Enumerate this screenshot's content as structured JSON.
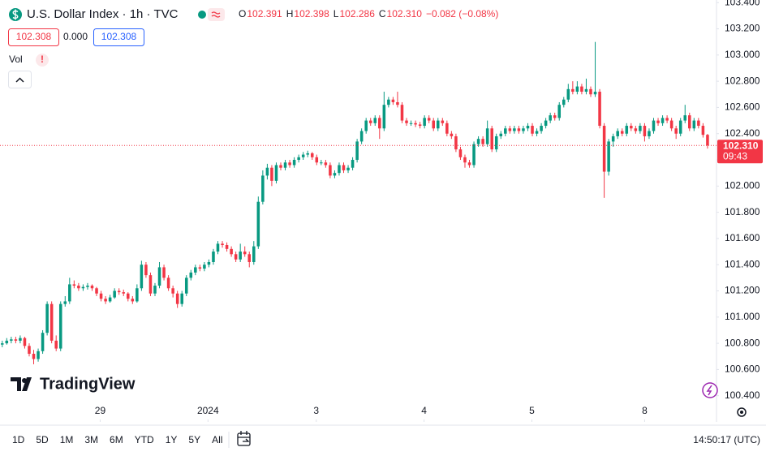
{
  "header": {
    "title": "U.S. Dollar Index · 1h · TVC",
    "ohlc": [
      {
        "key": "O",
        "value": "102.391"
      },
      {
        "key": "H",
        "value": "102.398"
      },
      {
        "key": "L",
        "value": "102.286"
      },
      {
        "key": "C",
        "value": "102.310"
      }
    ],
    "change": "−0.082 (−0.08%)",
    "bid": "102.308",
    "spread": "0.000",
    "ask": "102.308",
    "volume_label": "Vol",
    "volume_alert": "!"
  },
  "chart_data": {
    "type": "candlestick",
    "up_color": "#089981",
    "down_color": "#f23645",
    "grid": false,
    "xlim": [
      -0.5,
      159
    ],
    "ylim": [
      100.2,
      103.42
    ],
    "xticks": [
      {
        "value": 21.8,
        "label": "29"
      },
      {
        "value": 45.8,
        "label": "2024"
      },
      {
        "value": 69.9,
        "label": "3"
      },
      {
        "value": 93.9,
        "label": "4"
      },
      {
        "value": 117.9,
        "label": "5"
      },
      {
        "value": 143,
        "label": "8"
      }
    ],
    "yticks": [
      {
        "value": 100.4,
        "label": "100.400"
      },
      {
        "value": 100.6,
        "label": "100.600"
      },
      {
        "value": 100.8,
        "label": "100.800"
      },
      {
        "value": 101,
        "label": "101.000"
      },
      {
        "value": 101.2,
        "label": "101.200"
      },
      {
        "value": 101.4,
        "label": "101.400"
      },
      {
        "value": 101.6,
        "label": "101.600"
      },
      {
        "value": 101.8,
        "label": "101.800"
      },
      {
        "value": 102,
        "label": "102.000"
      },
      {
        "value": 102.2,
        "label": "102.200"
      },
      {
        "value": 102.4,
        "label": "102.400"
      },
      {
        "value": 102.6,
        "label": "102.600"
      },
      {
        "value": 102.8,
        "label": "102.800"
      },
      {
        "value": 103,
        "label": "103.000"
      },
      {
        "value": 103.2,
        "label": "103.200"
      },
      {
        "value": 103.4,
        "label": "103.400"
      }
    ],
    "last_price_label": "102.310",
    "countdown": "09:43",
    "candles": [
      [
        100.79,
        100.82,
        100.77,
        100.8
      ],
      [
        100.8,
        100.84,
        100.79,
        100.82
      ],
      [
        100.82,
        100.85,
        100.8,
        100.83
      ],
      [
        100.83,
        100.85,
        100.8,
        100.82
      ],
      [
        100.82,
        100.86,
        100.8,
        100.84
      ],
      [
        100.84,
        100.85,
        100.76,
        100.78
      ],
      [
        100.78,
        100.8,
        100.7,
        100.72
      ],
      [
        100.72,
        100.75,
        100.64,
        100.68
      ],
      [
        100.68,
        100.76,
        100.66,
        100.74
      ],
      [
        100.74,
        100.9,
        100.72,
        100.88
      ],
      [
        100.88,
        101.12,
        100.86,
        101.1
      ],
      [
        101.1,
        101.12,
        100.8,
        100.82
      ],
      [
        100.82,
        100.86,
        100.74,
        100.76
      ],
      [
        100.76,
        101.12,
        100.74,
        101.1
      ],
      [
        101.1,
        101.16,
        101.08,
        101.12
      ],
      [
        101.12,
        101.3,
        101.1,
        101.25
      ],
      [
        101.25,
        101.28,
        101.22,
        101.24
      ],
      [
        101.24,
        101.26,
        101.2,
        101.22
      ],
      [
        101.22,
        101.25,
        101.2,
        101.23
      ],
      [
        101.23,
        101.26,
        101.21,
        101.24
      ],
      [
        101.24,
        101.25,
        101.2,
        101.22
      ],
      [
        101.22,
        101.23,
        101.16,
        101.18
      ],
      [
        101.18,
        101.2,
        101.12,
        101.14
      ],
      [
        101.14,
        101.16,
        101.1,
        101.12
      ],
      [
        101.12,
        101.17,
        101.11,
        101.15
      ],
      [
        101.15,
        101.22,
        101.14,
        101.2
      ],
      [
        101.2,
        101.22,
        101.17,
        101.19
      ],
      [
        101.19,
        101.21,
        101.16,
        101.18
      ],
      [
        101.18,
        101.19,
        101.12,
        101.14
      ],
      [
        101.14,
        101.16,
        101.1,
        101.12
      ],
      [
        101.12,
        101.25,
        101.11,
        101.22
      ],
      [
        101.22,
        101.43,
        101.2,
        101.4
      ],
      [
        101.4,
        101.42,
        101.3,
        101.32
      ],
      [
        101.32,
        101.34,
        101.16,
        101.18
      ],
      [
        101.18,
        101.26,
        101.16,
        101.24
      ],
      [
        101.24,
        101.42,
        101.22,
        101.38
      ],
      [
        101.38,
        101.4,
        101.28,
        101.3
      ],
      [
        101.3,
        101.32,
        101.2,
        101.22
      ],
      [
        101.22,
        101.24,
        101.15,
        101.18
      ],
      [
        101.18,
        101.2,
        101.07,
        101.1
      ],
      [
        101.1,
        101.2,
        101.08,
        101.18
      ],
      [
        101.18,
        101.32,
        101.16,
        101.3
      ],
      [
        101.3,
        101.36,
        101.28,
        101.34
      ],
      [
        101.34,
        101.4,
        101.32,
        101.38
      ],
      [
        101.38,
        101.4,
        101.35,
        101.37
      ],
      [
        101.37,
        101.42,
        101.35,
        101.4
      ],
      [
        101.4,
        101.44,
        101.38,
        101.42
      ],
      [
        101.42,
        101.52,
        101.4,
        101.5
      ],
      [
        101.5,
        101.58,
        101.48,
        101.56
      ],
      [
        101.56,
        101.58,
        101.53,
        101.55
      ],
      [
        101.55,
        101.57,
        101.5,
        101.52
      ],
      [
        101.52,
        101.54,
        101.46,
        101.48
      ],
      [
        101.48,
        101.5,
        101.42,
        101.44
      ],
      [
        101.44,
        101.56,
        101.42,
        101.5
      ],
      [
        101.5,
        101.54,
        101.46,
        101.48
      ],
      [
        101.48,
        101.5,
        101.38,
        101.42
      ],
      [
        101.42,
        101.58,
        101.4,
        101.54
      ],
      [
        101.54,
        101.92,
        101.52,
        101.88
      ],
      [
        101.88,
        102.12,
        101.86,
        102.08
      ],
      [
        102.08,
        102.17,
        102.05,
        102.14
      ],
      [
        102.14,
        102.16,
        102.0,
        102.04
      ],
      [
        102.04,
        102.18,
        102.02,
        102.16
      ],
      [
        102.16,
        102.18,
        102.12,
        102.14
      ],
      [
        102.14,
        102.2,
        102.12,
        102.18
      ],
      [
        102.18,
        102.2,
        102.14,
        102.16
      ],
      [
        102.16,
        102.22,
        102.14,
        102.2
      ],
      [
        102.2,
        102.24,
        102.18,
        102.22
      ],
      [
        102.22,
        102.26,
        102.2,
        102.24
      ],
      [
        102.24,
        102.27,
        102.22,
        102.25
      ],
      [
        102.25,
        102.26,
        102.2,
        102.22
      ],
      [
        102.22,
        102.24,
        102.16,
        102.18
      ],
      [
        102.18,
        102.2,
        102.16,
        102.18
      ],
      [
        102.18,
        102.2,
        102.14,
        102.16
      ],
      [
        102.16,
        102.18,
        102.06,
        102.08
      ],
      [
        102.08,
        102.12,
        102.06,
        102.1
      ],
      [
        102.1,
        102.18,
        102.08,
        102.16
      ],
      [
        102.16,
        102.18,
        102.1,
        102.12
      ],
      [
        102.12,
        102.16,
        102.1,
        102.14
      ],
      [
        102.14,
        102.22,
        102.12,
        102.2
      ],
      [
        102.2,
        102.36,
        102.18,
        102.34
      ],
      [
        102.34,
        102.44,
        102.32,
        102.42
      ],
      [
        102.42,
        102.52,
        102.4,
        102.5
      ],
      [
        102.5,
        102.52,
        102.46,
        102.48
      ],
      [
        102.48,
        102.54,
        102.46,
        102.52
      ],
      [
        102.52,
        102.54,
        102.36,
        102.44
      ],
      [
        102.44,
        102.72,
        102.42,
        102.62
      ],
      [
        102.62,
        102.68,
        102.6,
        102.66
      ],
      [
        102.66,
        102.68,
        102.62,
        102.64
      ],
      [
        102.64,
        102.72,
        102.6,
        102.62
      ],
      [
        102.62,
        102.64,
        102.48,
        102.5
      ],
      [
        102.5,
        102.52,
        102.46,
        102.48
      ],
      [
        102.48,
        102.5,
        102.46,
        102.48
      ],
      [
        102.48,
        102.5,
        102.45,
        102.47
      ],
      [
        102.47,
        102.49,
        102.44,
        102.46
      ],
      [
        102.46,
        102.54,
        102.44,
        102.52
      ],
      [
        102.52,
        102.54,
        102.48,
        102.5
      ],
      [
        102.5,
        102.52,
        102.42,
        102.44
      ],
      [
        102.44,
        102.52,
        102.42,
        102.5
      ],
      [
        102.5,
        102.52,
        102.46,
        102.48
      ],
      [
        102.48,
        102.5,
        102.38,
        102.4
      ],
      [
        102.4,
        102.42,
        102.36,
        102.38
      ],
      [
        102.38,
        102.4,
        102.26,
        102.28
      ],
      [
        102.28,
        102.3,
        102.2,
        102.22
      ],
      [
        102.22,
        102.24,
        102.14,
        102.18
      ],
      [
        102.18,
        102.2,
        102.14,
        102.16
      ],
      [
        102.16,
        102.34,
        102.14,
        102.32
      ],
      [
        102.32,
        102.38,
        102.3,
        102.36
      ],
      [
        102.36,
        102.38,
        102.3,
        102.32
      ],
      [
        102.32,
        102.5,
        102.3,
        102.44
      ],
      [
        102.44,
        102.46,
        102.26,
        102.28
      ],
      [
        102.28,
        102.4,
        102.26,
        102.38
      ],
      [
        102.38,
        102.42,
        102.36,
        102.4
      ],
      [
        102.4,
        102.46,
        102.38,
        102.44
      ],
      [
        102.44,
        102.46,
        102.4,
        102.42
      ],
      [
        102.42,
        102.46,
        102.4,
        102.44
      ],
      [
        102.44,
        102.46,
        102.4,
        102.42
      ],
      [
        102.42,
        102.46,
        102.4,
        102.44
      ],
      [
        102.44,
        102.48,
        102.42,
        102.46
      ],
      [
        102.46,
        102.48,
        102.38,
        102.4
      ],
      [
        102.4,
        102.44,
        102.38,
        102.42
      ],
      [
        102.42,
        102.48,
        102.4,
        102.46
      ],
      [
        102.46,
        102.52,
        102.44,
        102.5
      ],
      [
        102.5,
        102.56,
        102.48,
        102.54
      ],
      [
        102.54,
        102.56,
        102.5,
        102.52
      ],
      [
        102.52,
        102.64,
        102.5,
        102.62
      ],
      [
        102.62,
        102.68,
        102.6,
        102.66
      ],
      [
        102.66,
        102.78,
        102.64,
        102.74
      ],
      [
        102.74,
        102.8,
        102.7,
        102.72
      ],
      [
        102.72,
        102.8,
        102.7,
        102.76
      ],
      [
        102.76,
        102.78,
        102.7,
        102.72
      ],
      [
        102.72,
        102.82,
        102.7,
        102.74
      ],
      [
        102.74,
        102.76,
        102.68,
        102.7
      ],
      [
        102.7,
        103.1,
        102.68,
        102.72
      ],
      [
        102.72,
        102.74,
        102.44,
        102.46
      ],
      [
        102.46,
        102.48,
        101.91,
        102.11
      ],
      [
        102.11,
        102.36,
        102.08,
        102.34
      ],
      [
        102.34,
        102.4,
        102.3,
        102.38
      ],
      [
        102.38,
        102.44,
        102.36,
        102.42
      ],
      [
        102.42,
        102.44,
        102.38,
        102.4
      ],
      [
        102.4,
        102.48,
        102.38,
        102.46
      ],
      [
        102.46,
        102.48,
        102.42,
        102.44
      ],
      [
        102.44,
        102.46,
        102.4,
        102.42
      ],
      [
        102.42,
        102.48,
        102.4,
        102.46
      ],
      [
        102.46,
        102.48,
        102.34,
        102.38
      ],
      [
        102.38,
        102.44,
        102.36,
        102.42
      ],
      [
        102.42,
        102.52,
        102.4,
        102.5
      ],
      [
        102.5,
        102.52,
        102.46,
        102.48
      ],
      [
        102.48,
        102.54,
        102.46,
        102.52
      ],
      [
        102.52,
        102.54,
        102.48,
        102.5
      ],
      [
        102.5,
        102.52,
        102.42,
        102.44
      ],
      [
        102.44,
        102.46,
        102.36,
        102.4
      ],
      [
        102.4,
        102.52,
        102.38,
        102.5
      ],
      [
        102.5,
        102.62,
        102.48,
        102.54
      ],
      [
        102.54,
        102.56,
        102.42,
        102.44
      ],
      [
        102.44,
        102.52,
        102.42,
        102.5
      ],
      [
        102.5,
        102.52,
        102.44,
        102.46
      ],
      [
        102.46,
        102.48,
        102.37,
        102.391
      ],
      [
        102.391,
        102.398,
        102.286,
        102.31
      ]
    ]
  },
  "watermark": "TradingView",
  "toolbar": {
    "ranges": [
      "1D",
      "5D",
      "1M",
      "3M",
      "6M",
      "YTD",
      "1Y",
      "5Y",
      "All"
    ],
    "clock": "14:50:17 (UTC)"
  }
}
